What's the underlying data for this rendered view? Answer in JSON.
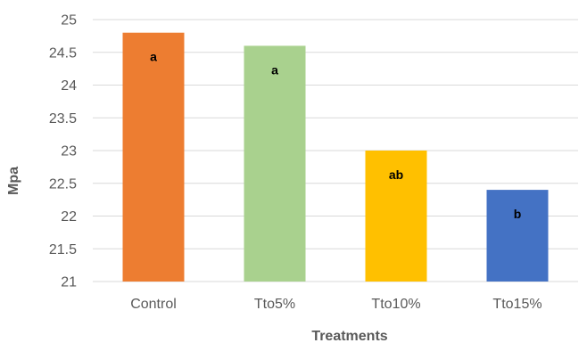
{
  "chart_data": {
    "type": "bar",
    "title": "",
    "xlabel": "Treatments",
    "ylabel": "Mpa",
    "categories": [
      "Control",
      "Tto5%",
      "Tto10%",
      "Tto15%"
    ],
    "values": [
      24.8,
      24.6,
      23.0,
      22.4
    ],
    "bar_labels": [
      "a",
      "a",
      "ab",
      "b"
    ],
    "bar_colors": [
      "#ED7D31",
      "#A9D18E",
      "#FFC000",
      "#4472C4"
    ],
    "ylim": [
      21,
      25
    ],
    "y_ticks": [
      "21",
      "21.5",
      "22",
      "22.5",
      "23",
      "23.5",
      "24",
      "24.5",
      "25"
    ],
    "grid": true,
    "gridline_color": "#D9D9D9",
    "legend": "none"
  }
}
